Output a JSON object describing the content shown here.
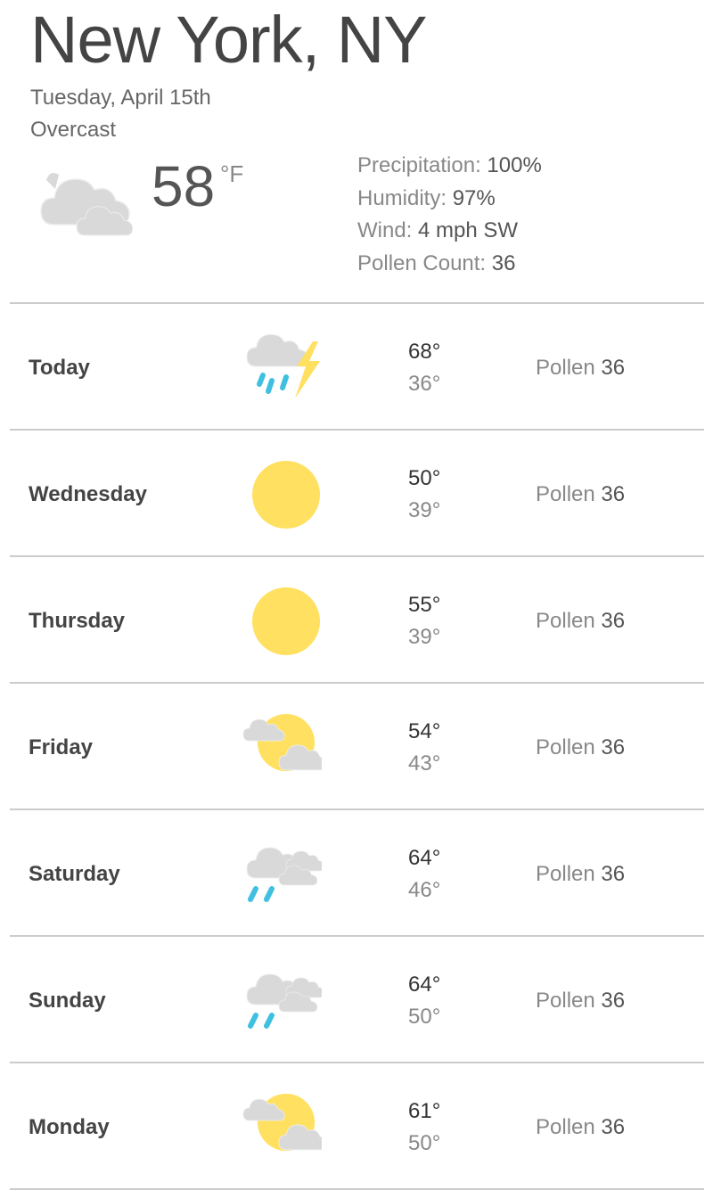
{
  "location": "New York, NY",
  "date": "Tuesday, April 15th",
  "condition": "Overcast",
  "current": {
    "icon": "cloudy-icon",
    "temp": "58",
    "unit": "°F"
  },
  "details": [
    {
      "label": "Precipitation: ",
      "value": "100%"
    },
    {
      "label": "Humidity: ",
      "value": "97%"
    },
    {
      "label": "Wind: ",
      "value": "4 mph SW"
    },
    {
      "label": "Pollen Count: ",
      "value": "36"
    }
  ],
  "colors": {
    "cloud": "#d9d9d9",
    "sun": "#ffe060",
    "rain": "#40c0e0",
    "bolt": "#ffe060"
  },
  "forecast": [
    {
      "day": "Today",
      "icon": "thunderstorm-icon",
      "high": "68°",
      "low": "36°",
      "pollen_label": "Pollen ",
      "pollen": "36"
    },
    {
      "day": "Wednesday",
      "icon": "sun-icon",
      "high": "50°",
      "low": "39°",
      "pollen_label": "Pollen ",
      "pollen": "36"
    },
    {
      "day": "Thursday",
      "icon": "sun-icon",
      "high": "55°",
      "low": "39°",
      "pollen_label": "Pollen ",
      "pollen": "36"
    },
    {
      "day": "Friday",
      "icon": "partly-cloudy-icon",
      "high": "54°",
      "low": "43°",
      "pollen_label": "Pollen ",
      "pollen": "36"
    },
    {
      "day": "Saturday",
      "icon": "rain-icon",
      "high": "64°",
      "low": "46°",
      "pollen_label": "Pollen ",
      "pollen": "36"
    },
    {
      "day": "Sunday",
      "icon": "rain-icon",
      "high": "64°",
      "low": "50°",
      "pollen_label": "Pollen ",
      "pollen": "36"
    },
    {
      "day": "Monday",
      "icon": "partly-cloudy-icon",
      "high": "61°",
      "low": "50°",
      "pollen_label": "Pollen ",
      "pollen": "36"
    }
  ]
}
